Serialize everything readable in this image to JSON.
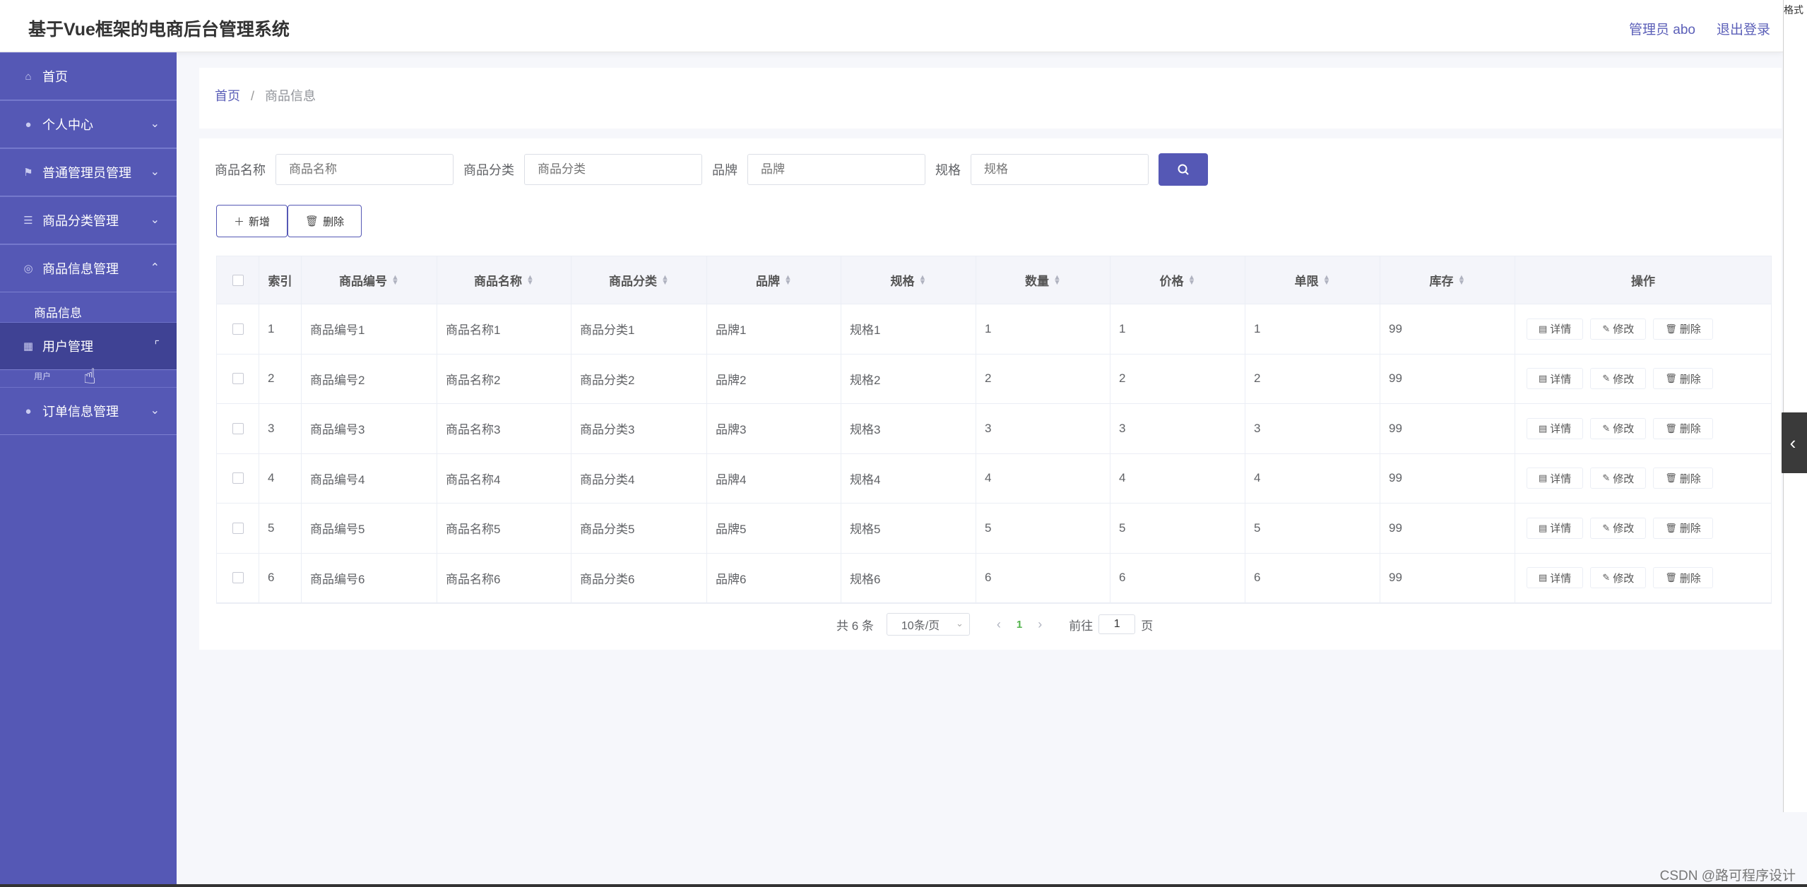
{
  "header": {
    "title": "基于Vue框架的电商后台管理系统",
    "user": "管理员 abo",
    "logout": "退出登录"
  },
  "edge": {
    "text": "格式",
    "arrow": "‹"
  },
  "sidebar": {
    "items": [
      {
        "label": "首页",
        "icon": "home-icon",
        "glyph": "⌂",
        "arrow": ""
      },
      {
        "label": "个人中心",
        "icon": "user-icon",
        "glyph": "●",
        "arrow": "⌄"
      },
      {
        "label": "普通管理员管理",
        "icon": "flag-icon",
        "glyph": "⚑",
        "arrow": "⌄"
      },
      {
        "label": "商品分类管理",
        "icon": "sliders-icon",
        "glyph": "☰",
        "arrow": "⌄"
      },
      {
        "label": "商品信息管理",
        "icon": "dashboard-icon",
        "glyph": "◎",
        "arrow": "⌃"
      },
      {
        "label": "用户管理",
        "icon": "grid-icon",
        "glyph": "▦",
        "arrow": "⌜"
      },
      {
        "label": "订单信息管理",
        "icon": "user-icon",
        "glyph": "●",
        "arrow": "⌄"
      }
    ],
    "submenu": "商品信息",
    "submenu_ghost": "用户"
  },
  "breadcrumb": {
    "home": "首页",
    "sep": "/",
    "current": "商品信息"
  },
  "search": {
    "fields": [
      {
        "label": "商品名称",
        "placeholder": "商品名称"
      },
      {
        "label": "商品分类",
        "placeholder": "商品分类"
      },
      {
        "label": "品牌",
        "placeholder": "品牌"
      },
      {
        "label": "规格",
        "placeholder": "规格"
      }
    ],
    "button_icon": "search-icon"
  },
  "actions": {
    "add": "新增",
    "delete": "删除"
  },
  "table": {
    "columns": [
      "索引",
      "商品编号",
      "商品名称",
      "商品分类",
      "品牌",
      "规格",
      "数量",
      "价格",
      "单限",
      "库存",
      "操作"
    ],
    "rows": [
      [
        "1",
        "商品编号1",
        "商品名称1",
        "商品分类1",
        "品牌1",
        "规格1",
        "1",
        "1",
        "1",
        "99"
      ],
      [
        "2",
        "商品编号2",
        "商品名称2",
        "商品分类2",
        "品牌2",
        "规格2",
        "2",
        "2",
        "2",
        "99"
      ],
      [
        "3",
        "商品编号3",
        "商品名称3",
        "商品分类3",
        "品牌3",
        "规格3",
        "3",
        "3",
        "3",
        "99"
      ],
      [
        "4",
        "商品编号4",
        "商品名称4",
        "商品分类4",
        "品牌4",
        "规格4",
        "4",
        "4",
        "4",
        "99"
      ],
      [
        "5",
        "商品编号5",
        "商品名称5",
        "商品分类5",
        "品牌5",
        "规格5",
        "5",
        "5",
        "5",
        "99"
      ],
      [
        "6",
        "商品编号6",
        "商品名称6",
        "商品分类6",
        "品牌6",
        "规格6",
        "6",
        "6",
        "6",
        "99"
      ]
    ],
    "ops": {
      "detail": "详情",
      "edit": "修改",
      "delete": "删除"
    }
  },
  "pager": {
    "total": "共 6 条",
    "page_size": "10条/页",
    "current_page": "1",
    "goto_prefix": "前往",
    "goto_value": "1",
    "goto_suffix": "页"
  },
  "watermark": "CSDN @路可程序设计",
  "colors": {
    "sidebar": "#5558b5",
    "accent": "#5b5fb8"
  }
}
